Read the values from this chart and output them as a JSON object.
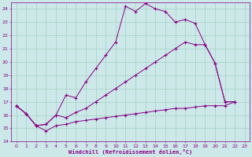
{
  "xlabel": "Windchill (Refroidissement éolien,°C)",
  "bg_color": "#cce8e8",
  "line_color": "#880088",
  "grid_color": "#99ccbb",
  "xlim": [
    -0.5,
    23.5
  ],
  "ylim": [
    14,
    24.5
  ],
  "xticks": [
    0,
    1,
    2,
    3,
    4,
    5,
    6,
    7,
    8,
    9,
    10,
    11,
    12,
    13,
    14,
    15,
    16,
    17,
    18,
    19,
    20,
    21,
    22,
    23
  ],
  "yticks": [
    14,
    15,
    16,
    17,
    18,
    19,
    20,
    21,
    22,
    23,
    24
  ],
  "line1_x": [
    0,
    1,
    2,
    3,
    4,
    5,
    6,
    7,
    8,
    9,
    10,
    11,
    12,
    13,
    14,
    15,
    16,
    17,
    18,
    19,
    20,
    21,
    22
  ],
  "line1_y": [
    16.7,
    16.1,
    15.2,
    15.3,
    16.0,
    17.5,
    17.3,
    18.5,
    19.5,
    20.5,
    21.5,
    24.2,
    23.8,
    24.4,
    24.0,
    23.8,
    23.0,
    23.2,
    22.9,
    21.3,
    19.9,
    17.0,
    17.0
  ],
  "line2_x": [
    0,
    1,
    2,
    3,
    4,
    5,
    6,
    7,
    8,
    9,
    10,
    11,
    12,
    13,
    14,
    15,
    16,
    17,
    18,
    19,
    20,
    21,
    22
  ],
  "line2_y": [
    16.7,
    16.1,
    15.2,
    15.3,
    16.0,
    15.8,
    16.2,
    16.5,
    17.0,
    17.5,
    18.0,
    18.5,
    19.0,
    19.5,
    20.0,
    20.5,
    21.0,
    21.5,
    21.3,
    21.3,
    19.9,
    17.0,
    17.0
  ],
  "line3_x": [
    0,
    1,
    2,
    3,
    4,
    5,
    6,
    7,
    8,
    9,
    10,
    11,
    12,
    13,
    14,
    15,
    16,
    17,
    18,
    19,
    20,
    21,
    22
  ],
  "line3_y": [
    16.7,
    16.1,
    15.2,
    14.8,
    15.2,
    15.3,
    15.5,
    15.6,
    15.7,
    15.8,
    15.9,
    16.0,
    16.1,
    16.2,
    16.3,
    16.4,
    16.5,
    16.5,
    16.6,
    16.7,
    16.7,
    16.7,
    17.0
  ],
  "figsize": [
    3.2,
    2.0
  ],
  "dpi": 100
}
